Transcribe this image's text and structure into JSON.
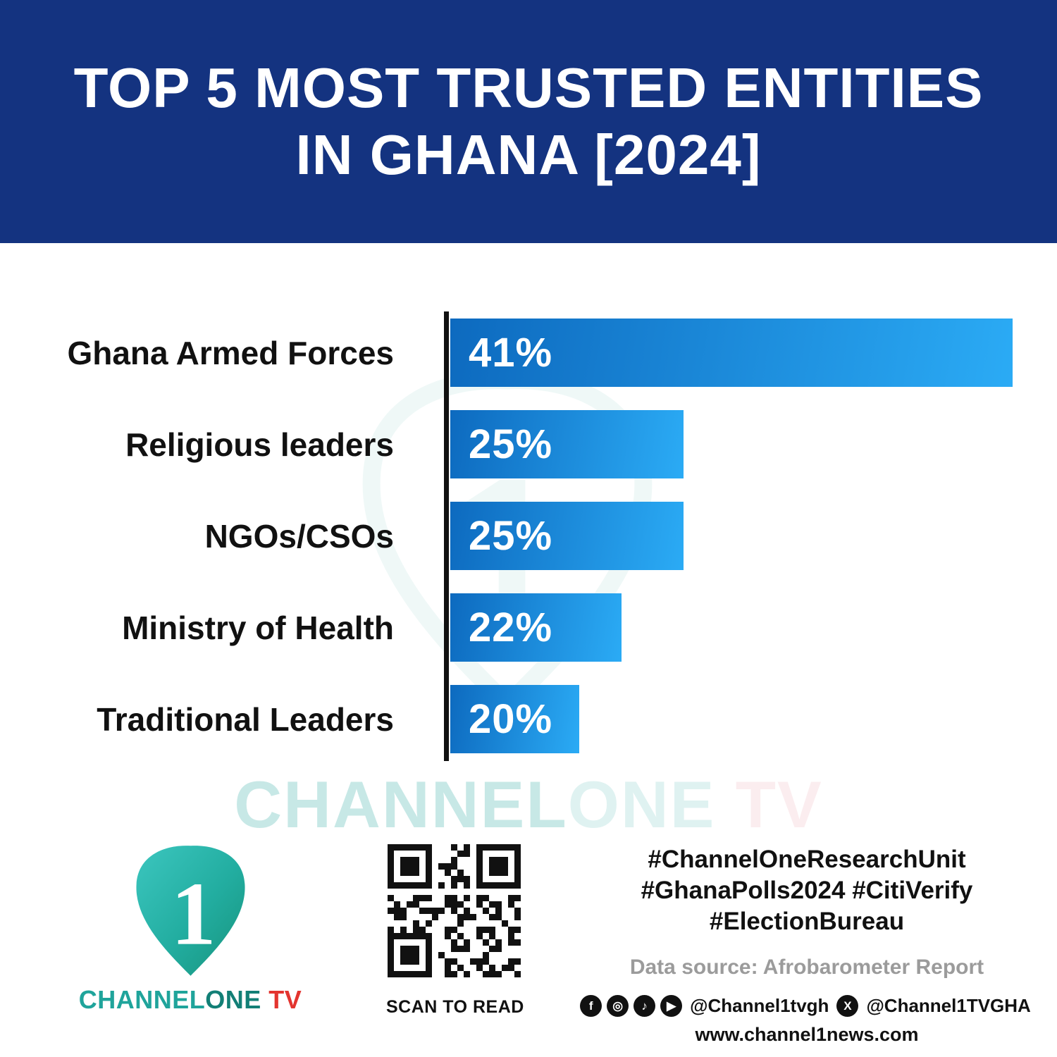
{
  "banner": {
    "title_line1": "TOP 5 MOST TRUSTED ENTITIES",
    "title_line2": "IN GHANA [2024]"
  },
  "chart_data": {
    "type": "bar",
    "orientation": "horizontal",
    "title": "TOP 5 MOST TRUSTED ENTITIES IN GHANA [2024]",
    "categories": [
      "Ghana Armed Forces",
      "Religious leaders",
      "NGOs/CSOs",
      "Ministry of Health",
      "Traditional Leaders"
    ],
    "values": [
      41,
      25,
      25,
      22,
      20
    ],
    "value_labels": [
      "41%",
      "25%",
      "25%",
      "22%",
      "20%"
    ],
    "display_width_pct": [
      100,
      41.5,
      41.5,
      30.5,
      22.9
    ],
    "xlabel": "",
    "ylabel": "",
    "grid": false,
    "legend": false,
    "bar_gradient": [
      "#0d6abf",
      "#2babf5"
    ],
    "axis_color": "#111111"
  },
  "watermark": {
    "part1": "CHANNEL",
    "part2": "ONE",
    "part3": " TV"
  },
  "footer": {
    "logo": {
      "digit": "1",
      "brand_channel": "CHANNEL",
      "brand_one": "ONE",
      "brand_tv": " TV"
    },
    "qr_label": "SCAN TO READ",
    "hashtags": [
      "#ChannelOneResearchUnit",
      "#GhanaPolls2024 #CitiVerify",
      "#ElectionBureau"
    ],
    "source": "Data source: Afrobarometer Report",
    "social": {
      "facebook_glyph": "f",
      "instagram_glyph": "◎",
      "tiktok_glyph": "♪",
      "youtube_glyph": "▶",
      "x_glyph": "X",
      "handle1": "@Channel1tvgh",
      "handle2": "@Channel1TVGHA"
    },
    "website": "www.channel1news.com"
  },
  "colors": {
    "banner_bg": "#143380",
    "bar_gradient_start": "#0d6abf",
    "bar_gradient_end": "#2babf5",
    "brand_teal": "#1fa49b",
    "brand_red": "#e3342f",
    "text_dark": "#111111",
    "source_gray": "#9b9b9b"
  }
}
